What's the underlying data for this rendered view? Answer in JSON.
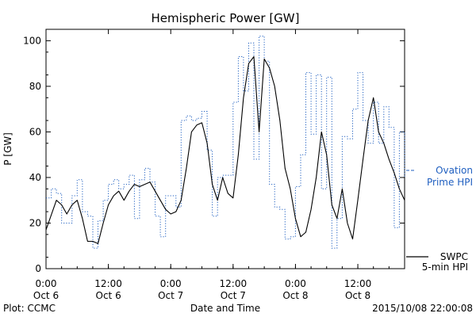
{
  "chart_data": {
    "type": "line",
    "title": "Hemispheric Power [GW]",
    "xlabel": "Date and Time",
    "ylabel": "P [GW]",
    "ylim": [
      0,
      105
    ],
    "xlim": [
      "2015-10-06 00:00",
      "2015-10-08 21:00"
    ],
    "y_ticks": [
      0,
      20,
      40,
      60,
      80,
      100
    ],
    "x_ticks": [
      {
        "t": "2015-10-06 00:00",
        "time": "0:00",
        "date": "Oct 6"
      },
      {
        "t": "2015-10-06 12:00",
        "time": "12:00",
        "date": "Oct 6"
      },
      {
        "t": "2015-10-07 00:00",
        "time": "0:00",
        "date": "Oct 7"
      },
      {
        "t": "2015-10-07 12:00",
        "time": "12:00",
        "date": "Oct 7"
      },
      {
        "t": "2015-10-08 00:00",
        "time": "0:00",
        "date": "Oct 8"
      },
      {
        "t": "2015-10-08 12:00",
        "time": "12:00",
        "date": "Oct 8"
      }
    ],
    "grid": false,
    "legend_position": "right",
    "series": [
      {
        "name": "Ovation Prime HPI",
        "legend_lines": [
          "Ovation",
          "Prime HPI"
        ],
        "color": "#1f5fc0",
        "style": "dotted-step",
        "x": [
          "2015-10-06 00:00",
          "2015-10-06 01:00",
          "2015-10-06 02:00",
          "2015-10-06 03:00",
          "2015-10-06 04:00",
          "2015-10-06 05:00",
          "2015-10-06 06:00",
          "2015-10-06 07:00",
          "2015-10-06 08:00",
          "2015-10-06 09:00",
          "2015-10-06 10:00",
          "2015-10-06 11:00",
          "2015-10-06 12:00",
          "2015-10-06 13:00",
          "2015-10-06 14:00",
          "2015-10-06 15:00",
          "2015-10-06 16:00",
          "2015-10-06 17:00",
          "2015-10-06 18:00",
          "2015-10-06 19:00",
          "2015-10-06 20:00",
          "2015-10-06 21:00",
          "2015-10-06 22:00",
          "2015-10-06 23:00",
          "2015-10-07 00:00",
          "2015-10-07 01:00",
          "2015-10-07 02:00",
          "2015-10-07 03:00",
          "2015-10-07 04:00",
          "2015-10-07 05:00",
          "2015-10-07 06:00",
          "2015-10-07 07:00",
          "2015-10-07 08:00",
          "2015-10-07 09:00",
          "2015-10-07 10:00",
          "2015-10-07 11:00",
          "2015-10-07 12:00",
          "2015-10-07 13:00",
          "2015-10-07 14:00",
          "2015-10-07 15:00",
          "2015-10-07 16:00",
          "2015-10-07 17:00",
          "2015-10-07 18:00",
          "2015-10-07 19:00",
          "2015-10-07 20:00",
          "2015-10-07 21:00",
          "2015-10-07 22:00",
          "2015-10-07 23:00",
          "2015-10-08 00:00",
          "2015-10-08 01:00",
          "2015-10-08 02:00",
          "2015-10-08 03:00",
          "2015-10-08 04:00",
          "2015-10-08 05:00",
          "2015-10-08 06:00",
          "2015-10-08 07:00",
          "2015-10-08 08:00",
          "2015-10-08 09:00",
          "2015-10-08 10:00",
          "2015-10-08 11:00",
          "2015-10-08 12:00",
          "2015-10-08 13:00",
          "2015-10-08 14:00",
          "2015-10-08 15:00",
          "2015-10-08 16:00",
          "2015-10-08 17:00",
          "2015-10-08 18:00",
          "2015-10-08 19:00",
          "2015-10-08 20:00",
          "2015-10-08 21:00"
        ],
        "values": [
          31,
          35,
          33,
          20,
          20,
          32,
          39,
          25,
          23,
          9,
          21,
          30,
          37,
          39,
          35,
          37,
          41,
          22,
          39,
          44,
          38,
          23,
          14,
          32,
          32,
          27,
          65,
          67,
          65,
          66,
          69,
          52,
          23,
          40,
          41,
          41,
          73,
          93,
          78,
          99,
          48,
          102,
          91,
          37,
          27,
          26,
          13,
          14,
          36,
          50,
          86,
          59,
          85,
          35,
          84,
          9,
          22,
          58,
          57,
          70,
          86,
          65,
          55,
          73,
          55,
          71,
          62,
          18,
          60,
          40
        ]
      },
      {
        "name": "SWPC 5-min HPI",
        "legend_lines": [
          "SWPC",
          "5-min HPI"
        ],
        "color": "#000000",
        "style": "solid",
        "x": [
          "2015-10-06 00:00",
          "2015-10-06 02:00",
          "2015-10-06 03:00",
          "2015-10-06 04:00",
          "2015-10-06 05:00",
          "2015-10-06 06:00",
          "2015-10-06 07:00",
          "2015-10-06 08:00",
          "2015-10-06 09:00",
          "2015-10-06 10:00",
          "2015-10-06 11:00",
          "2015-10-06 12:00",
          "2015-10-06 13:00",
          "2015-10-06 14:00",
          "2015-10-06 15:00",
          "2015-10-06 16:00",
          "2015-10-06 17:00",
          "2015-10-06 18:00",
          "2015-10-06 20:00",
          "2015-10-06 22:00",
          "2015-10-06 23:00",
          "2015-10-07 00:00",
          "2015-10-07 01:00",
          "2015-10-07 02:00",
          "2015-10-07 03:00",
          "2015-10-07 04:00",
          "2015-10-07 05:00",
          "2015-10-07 06:00",
          "2015-10-07 07:00",
          "2015-10-07 08:00",
          "2015-10-07 09:00",
          "2015-10-07 10:00",
          "2015-10-07 11:00",
          "2015-10-07 12:00",
          "2015-10-07 13:00",
          "2015-10-07 14:00",
          "2015-10-07 15:00",
          "2015-10-07 16:00",
          "2015-10-07 17:00",
          "2015-10-07 18:00",
          "2015-10-07 19:00",
          "2015-10-07 20:00",
          "2015-10-07 21:00",
          "2015-10-07 22:00",
          "2015-10-07 23:00",
          "2015-10-08 00:00",
          "2015-10-08 01:00",
          "2015-10-08 02:00",
          "2015-10-08 03:00",
          "2015-10-08 04:00",
          "2015-10-08 05:00",
          "2015-10-08 06:00",
          "2015-10-08 07:00",
          "2015-10-08 08:00",
          "2015-10-08 09:00",
          "2015-10-08 10:00",
          "2015-10-08 11:00",
          "2015-10-08 12:00",
          "2015-10-08 13:00",
          "2015-10-08 14:00",
          "2015-10-08 15:00",
          "2015-10-08 16:00",
          "2015-10-08 17:00",
          "2015-10-08 18:00",
          "2015-10-08 19:00",
          "2015-10-08 20:00",
          "2015-10-08 21:00"
        ],
        "values": [
          17,
          30,
          28,
          24,
          28,
          30,
          22,
          12,
          12,
          11,
          20,
          28,
          32,
          34,
          30,
          34,
          37,
          36,
          38,
          30,
          26,
          24,
          25,
          30,
          44,
          60,
          63,
          64,
          55,
          37,
          30,
          40,
          33,
          31,
          50,
          75,
          90,
          93,
          60,
          92,
          88,
          80,
          65,
          44,
          35,
          22,
          14,
          16,
          26,
          40,
          60,
          50,
          28,
          22,
          35,
          20,
          13,
          30,
          48,
          65,
          75,
          60,
          55,
          48,
          42,
          35,
          30
        ]
      }
    ]
  },
  "footer": {
    "plot_credit": "Plot: CCMC",
    "timestamp": "2015/10/08 22:00:08"
  }
}
